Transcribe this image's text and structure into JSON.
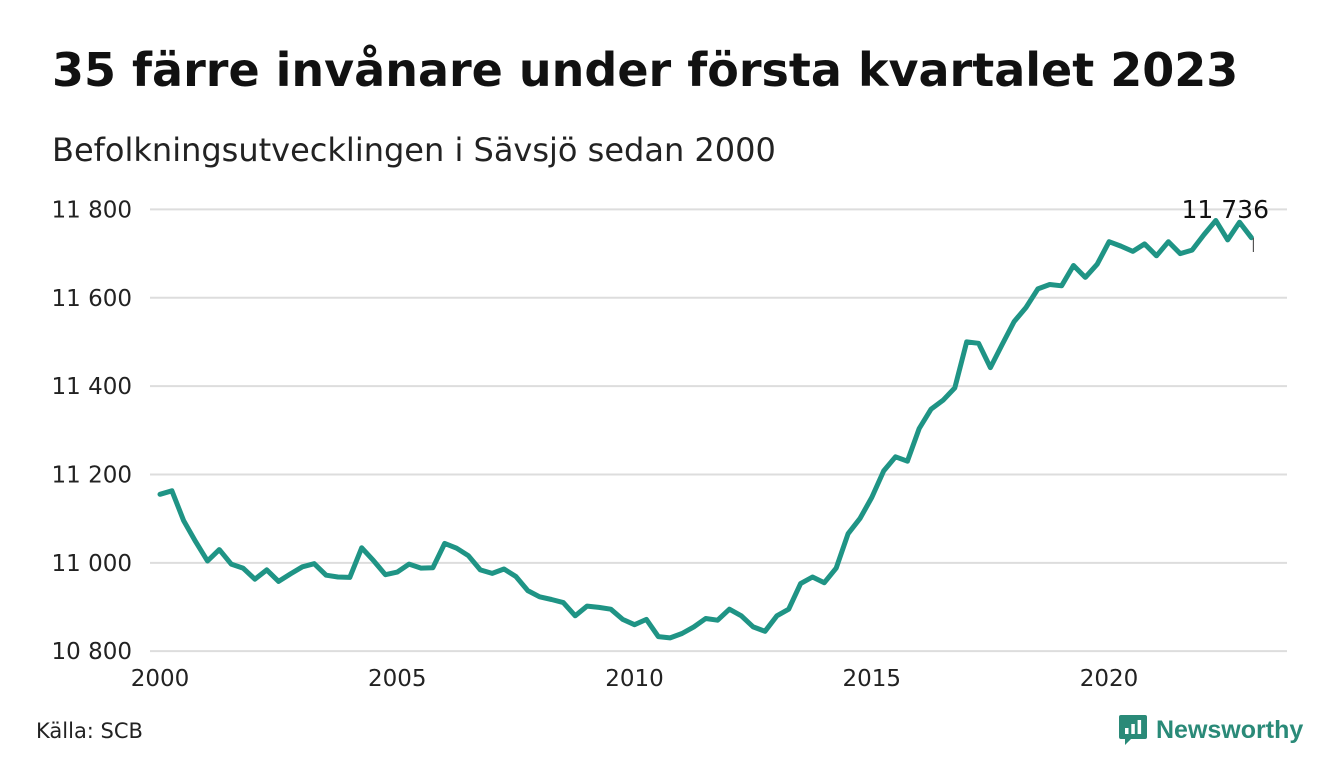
{
  "header": {
    "title": "35 färre invånare under första kvartalet 2023",
    "subtitle": "Befolkningsutvecklingen i Sävsjö sedan 2000"
  },
  "footer": {
    "source": "Källa: SCB",
    "brand": "Newsworthy"
  },
  "colors": {
    "line": "#1f9485",
    "grid": "#dddddd",
    "brand": "#2a8a78"
  },
  "chart_data": {
    "type": "line",
    "x_start": 2000.0,
    "x_step": 0.25,
    "xlim": [
      2000,
      2023.75
    ],
    "ylim": [
      10780,
      11810
    ],
    "y_ticks": [
      10800,
      11000,
      11200,
      11400,
      11600,
      11800
    ],
    "y_tick_labels": [
      "10 800",
      "11 000",
      "11 200",
      "11 400",
      "11 600",
      "11 800"
    ],
    "x_ticks": [
      2000,
      2005,
      2010,
      2015,
      2020
    ],
    "x_tick_labels": [
      "2000",
      "2005",
      "2010",
      "2015",
      "2020"
    ],
    "last_value_label": "11 736",
    "grid": true,
    "values": [
      11155,
      11163,
      11095,
      11048,
      11004,
      11030,
      10997,
      10988,
      10963,
      10984,
      10958,
      10975,
      10991,
      10998,
      10972,
      10968,
      10967,
      11034,
      11005,
      10973,
      10979,
      10997,
      10988,
      10989,
      11044,
      11033,
      11016,
      10984,
      10976,
      10986,
      10969,
      10937,
      10923,
      10917,
      10910,
      10880,
      10902,
      10899,
      10895,
      10872,
      10860,
      10872,
      10833,
      10830,
      10840,
      10855,
      10874,
      10870,
      10895,
      10880,
      10855,
      10845,
      10880,
      10895,
      10953,
      10968,
      10955,
      10988,
      11066,
      11100,
      11148,
      11208,
      11240,
      11230,
      11304,
      11348,
      11368,
      11396,
      11500,
      11497,
      11442,
      11495,
      11546,
      11578,
      11620,
      11630,
      11627,
      11673,
      11646,
      11676,
      11727,
      11717,
      11705,
      11722,
      11695,
      11727,
      11700,
      11708,
      11743,
      11775,
      11731,
      11771,
      11736
    ]
  }
}
